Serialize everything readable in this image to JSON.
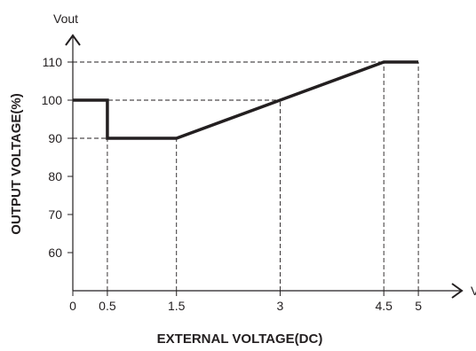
{
  "chart_data": {
    "type": "line",
    "title": "",
    "xlabel": "EXTERNAL VOLTAGE(DC)",
    "ylabel": "OUTPUT VOLTAGE(%)",
    "x_axis_name": "V",
    "y_axis_name": "Vout",
    "xlim": [
      0,
      5.5
    ],
    "ylim": [
      50,
      110
    ],
    "x_ticks": [
      0,
      0.5,
      1.5,
      3,
      4.5,
      5
    ],
    "x_tick_labels": [
      "0",
      "0.5",
      "1.5",
      "3",
      "4.5",
      "5"
    ],
    "y_ticks": [
      60,
      70,
      80,
      90,
      100,
      110
    ],
    "y_tick_labels": [
      "60",
      "70",
      "80",
      "90",
      "100",
      "110"
    ],
    "grid": false,
    "series": [
      {
        "x": [
          0,
          0.5,
          0.5,
          1.5,
          3,
          4.5,
          5
        ],
        "y": [
          100,
          100,
          90,
          90,
          100,
          110,
          110
        ]
      }
    ],
    "reference_lines": [
      {
        "x": [
          0,
          0.5
        ],
        "y": [
          90,
          90
        ]
      },
      {
        "x": [
          0.5,
          0.5
        ],
        "y": [
          50,
          90
        ]
      },
      {
        "x": [
          1.5,
          1.5
        ],
        "y": [
          50,
          90
        ]
      },
      {
        "x": [
          0,
          3
        ],
        "y": [
          100,
          100
        ]
      },
      {
        "x": [
          3,
          3
        ],
        "y": [
          50,
          100
        ]
      },
      {
        "x": [
          0,
          5
        ],
        "y": [
          110,
          110
        ]
      },
      {
        "x": [
          4.5,
          4.5
        ],
        "y": [
          50,
          110
        ]
      },
      {
        "x": [
          5,
          5
        ],
        "y": [
          50,
          110
        ]
      }
    ],
    "colors": {
      "line": "#231f20",
      "axis": "#231f20",
      "reference": "#231f20"
    }
  }
}
